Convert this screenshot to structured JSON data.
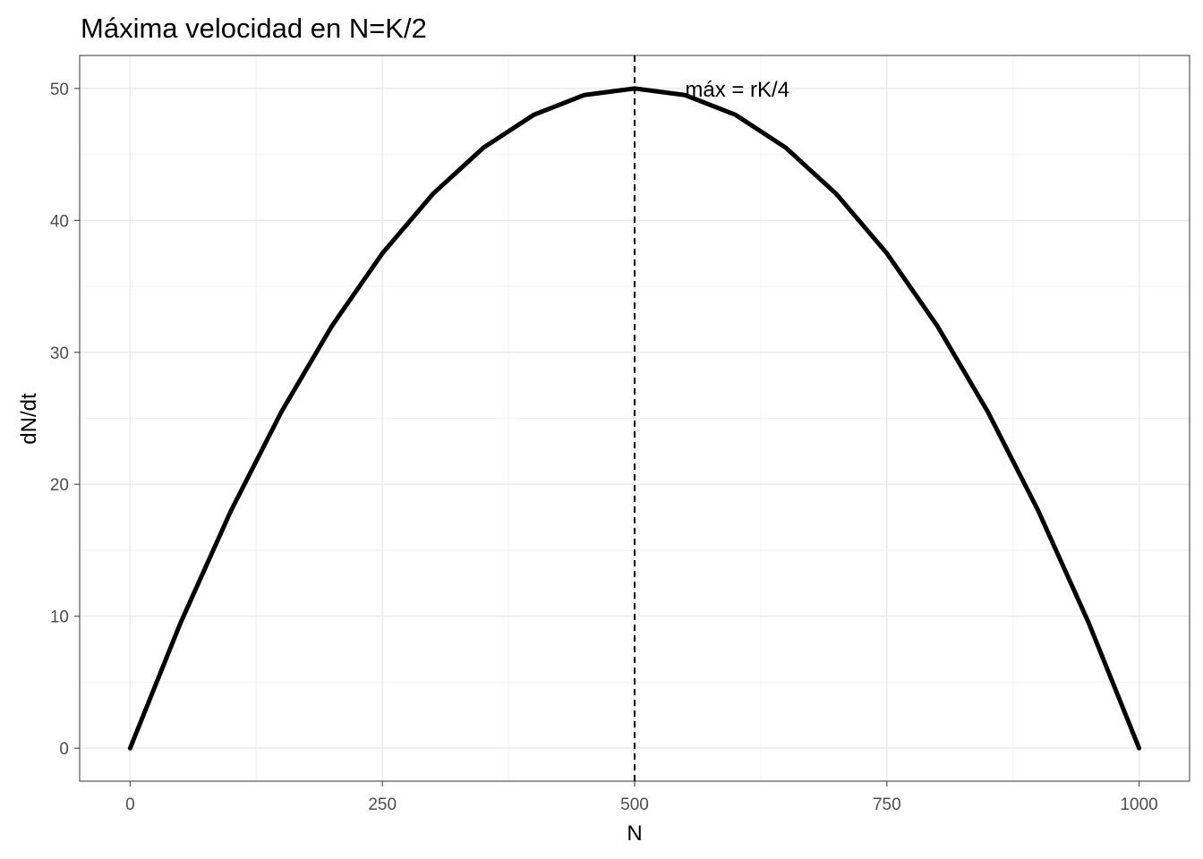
{
  "chart_data": {
    "type": "line",
    "title": "Máxima velocidad en N=K/2",
    "xlabel": "N",
    "ylabel": "dN/dt",
    "xlim": [
      -50,
      1050
    ],
    "ylim": [
      -2.5,
      52.5
    ],
    "x_ticks": [
      0,
      250,
      500,
      750,
      1000
    ],
    "x_tick_labels": [
      "0",
      "250",
      "500",
      "750",
      "1000"
    ],
    "y_ticks": [
      0,
      10,
      20,
      30,
      40,
      50
    ],
    "y_tick_labels": [
      "0",
      "10",
      "20",
      "30",
      "40",
      "50"
    ],
    "grid": true,
    "legend": "none",
    "background": "#ffffff",
    "colors": {
      "line": "#000000",
      "grid": "#ebebeb",
      "panel_border": "#333333",
      "tick_text": "#4d4d4d"
    },
    "series": [
      {
        "x": [
          0,
          50,
          100,
          150,
          200,
          250,
          300,
          350,
          400,
          450,
          500,
          550,
          600,
          650,
          700,
          750,
          800,
          850,
          900,
          950,
          1000
        ],
        "y": [
          0,
          9.5,
          18,
          25.5,
          32,
          37.5,
          42,
          45.5,
          48,
          49.5,
          50,
          49.5,
          48,
          45.5,
          42,
          37.5,
          32,
          25.5,
          18,
          9.5,
          0
        ]
      }
    ],
    "vertical_reference": {
      "x": 500,
      "style": "dashed"
    },
    "annotations": [
      {
        "text": "máx = rK/4",
        "x": 550,
        "y": 50
      }
    ]
  }
}
